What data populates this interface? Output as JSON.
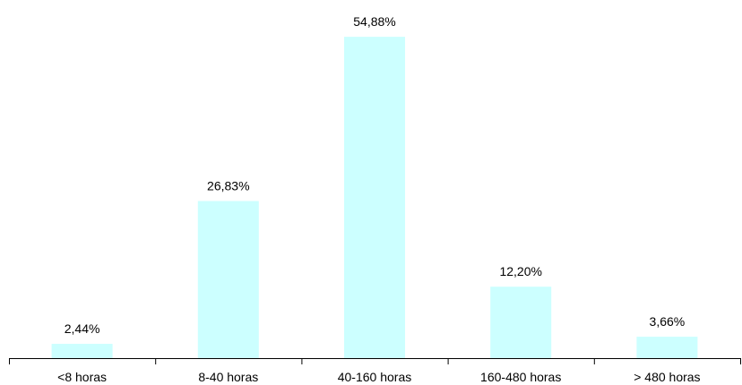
{
  "chart_data": {
    "type": "bar",
    "categories": [
      "<8 horas",
      "8-40 horas",
      "40-160 horas",
      "160-480 horas",
      "> 480 horas"
    ],
    "values": [
      2.44,
      26.83,
      54.88,
      12.2,
      3.66
    ],
    "data_labels": [
      "2,44%",
      "26,83%",
      "54,88%",
      "12,20%",
      "3,66%"
    ],
    "title": "",
    "xlabel": "",
    "ylabel": "",
    "ylim": [
      0,
      60
    ],
    "grid": false,
    "legend": "none",
    "colors": {
      "bar": "#ccffff",
      "axis": "#000000",
      "text": "#000000"
    }
  }
}
